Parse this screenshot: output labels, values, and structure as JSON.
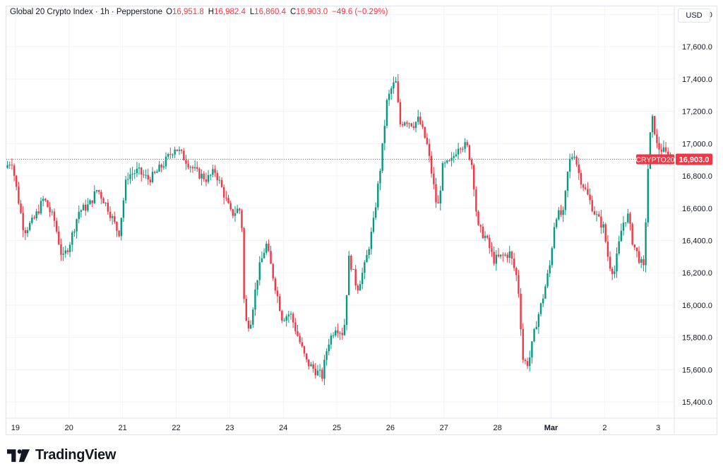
{
  "header": {
    "symbol_title": "Global 20 Crypto Index · 1h · Pepperstone",
    "open_label": "O",
    "open_value": "16,951.8",
    "high_label": "H",
    "high_value": "16,982.4",
    "low_label": "L",
    "low_value": "16,860.4",
    "close_label": "C",
    "close_value": "16,903.0",
    "change": "−49.6 (−0.29%)"
  },
  "currency": "USD",
  "price_badge": {
    "ticker": "CRYPTO20",
    "price": "16,903.0"
  },
  "brand": "TradingView",
  "colors": {
    "up": "#089981",
    "down": "#f23645",
    "grid": "#f0f3fa",
    "axis_text": "#131722"
  },
  "chart_data": {
    "type": "candlestick",
    "title": "Global 20 Crypto Index · 1h · Pepperstone",
    "y_ticks": [
      15400,
      15600,
      15800,
      16000,
      16200,
      16400,
      16600,
      16800,
      17000,
      17200,
      17400,
      17600,
      17800
    ],
    "y_tick_labels": [
      "15,400.0",
      "15,600.0",
      "15,800.0",
      "16,000.0",
      "16,200.0",
      "16,400.0",
      "16,600.0",
      "16,800.0",
      "17,000.0",
      "17,200.0",
      "17,400.0",
      "17,600.0",
      "17,800.0"
    ],
    "ylim": [
      15300,
      17850
    ],
    "x_ticks": [
      "19",
      "20",
      "21",
      "22",
      "23",
      "24",
      "25",
      "26",
      "27",
      "28",
      "Mar",
      "2",
      "3"
    ],
    "x_tick_days": [
      1,
      2,
      3,
      4,
      5,
      6,
      7,
      8,
      9,
      10,
      11,
      12,
      13
    ],
    "xlim_days": [
      0.83,
      13.3
    ],
    "last_price": 16903.0,
    "path_points": [
      [
        0.83,
        16850
      ],
      [
        0.95,
        16900
      ],
      [
        1.05,
        16700
      ],
      [
        1.18,
        16460
      ],
      [
        1.35,
        16520
      ],
      [
        1.55,
        16660
      ],
      [
        1.75,
        16520
      ],
      [
        1.9,
        16280
      ],
      [
        2.05,
        16400
      ],
      [
        2.2,
        16580
      ],
      [
        2.4,
        16620
      ],
      [
        2.55,
        16720
      ],
      [
        2.75,
        16600
      ],
      [
        2.95,
        16440
      ],
      [
        3.1,
        16800
      ],
      [
        3.3,
        16830
      ],
      [
        3.5,
        16780
      ],
      [
        3.6,
        16800
      ],
      [
        3.8,
        16880
      ],
      [
        4.0,
        16980
      ],
      [
        4.2,
        16900
      ],
      [
        4.4,
        16820
      ],
      [
        4.6,
        16780
      ],
      [
        4.75,
        16830
      ],
      [
        4.9,
        16700
      ],
      [
        5.05,
        16560
      ],
      [
        5.2,
        16600
      ],
      [
        5.25,
        16480
      ],
      [
        5.3,
        15900
      ],
      [
        5.4,
        15880
      ],
      [
        5.55,
        16200
      ],
      [
        5.7,
        16380
      ],
      [
        5.85,
        16150
      ],
      [
        6.0,
        15920
      ],
      [
        6.15,
        15950
      ],
      [
        6.3,
        15800
      ],
      [
        6.45,
        15650
      ],
      [
        6.6,
        15600
      ],
      [
        6.75,
        15560
      ],
      [
        6.85,
        15760
      ],
      [
        7.0,
        15870
      ],
      [
        7.15,
        15820
      ],
      [
        7.25,
        16300
      ],
      [
        7.4,
        16100
      ],
      [
        7.55,
        16250
      ],
      [
        7.7,
        16500
      ],
      [
        7.85,
        16900
      ],
      [
        7.95,
        17250
      ],
      [
        8.05,
        17350
      ],
      [
        8.12,
        17380
      ],
      [
        8.2,
        17120
      ],
      [
        8.3,
        17150
      ],
      [
        8.45,
        17120
      ],
      [
        8.55,
        17150
      ],
      [
        8.7,
        17000
      ],
      [
        8.8,
        16800
      ],
      [
        8.9,
        16580
      ],
      [
        9.0,
        16860
      ],
      [
        9.15,
        16880
      ],
      [
        9.3,
        17000
      ],
      [
        9.45,
        16980
      ],
      [
        9.55,
        16860
      ],
      [
        9.65,
        16480
      ],
      [
        9.8,
        16420
      ],
      [
        9.95,
        16280
      ],
      [
        10.1,
        16300
      ],
      [
        10.25,
        16320
      ],
      [
        10.4,
        16150
      ],
      [
        10.5,
        15650
      ],
      [
        10.6,
        15640
      ],
      [
        10.75,
        15900
      ],
      [
        10.85,
        16020
      ],
      [
        11.0,
        16250
      ],
      [
        11.1,
        16560
      ],
      [
        11.25,
        16560
      ],
      [
        11.35,
        16880
      ],
      [
        11.45,
        16950
      ],
      [
        11.55,
        16800
      ],
      [
        11.7,
        16680
      ],
      [
        11.85,
        16560
      ],
      [
        12.0,
        16480
      ],
      [
        12.1,
        16260
      ],
      [
        12.2,
        16200
      ],
      [
        12.35,
        16500
      ],
      [
        12.45,
        16560
      ],
      [
        12.55,
        16380
      ],
      [
        12.65,
        16300
      ],
      [
        12.75,
        16220
      ],
      [
        12.8,
        16620
      ],
      [
        12.85,
        17000
      ],
      [
        12.92,
        17160
      ],
      [
        13.0,
        16980
      ],
      [
        13.1,
        16960
      ],
      [
        13.25,
        16903
      ]
    ]
  }
}
